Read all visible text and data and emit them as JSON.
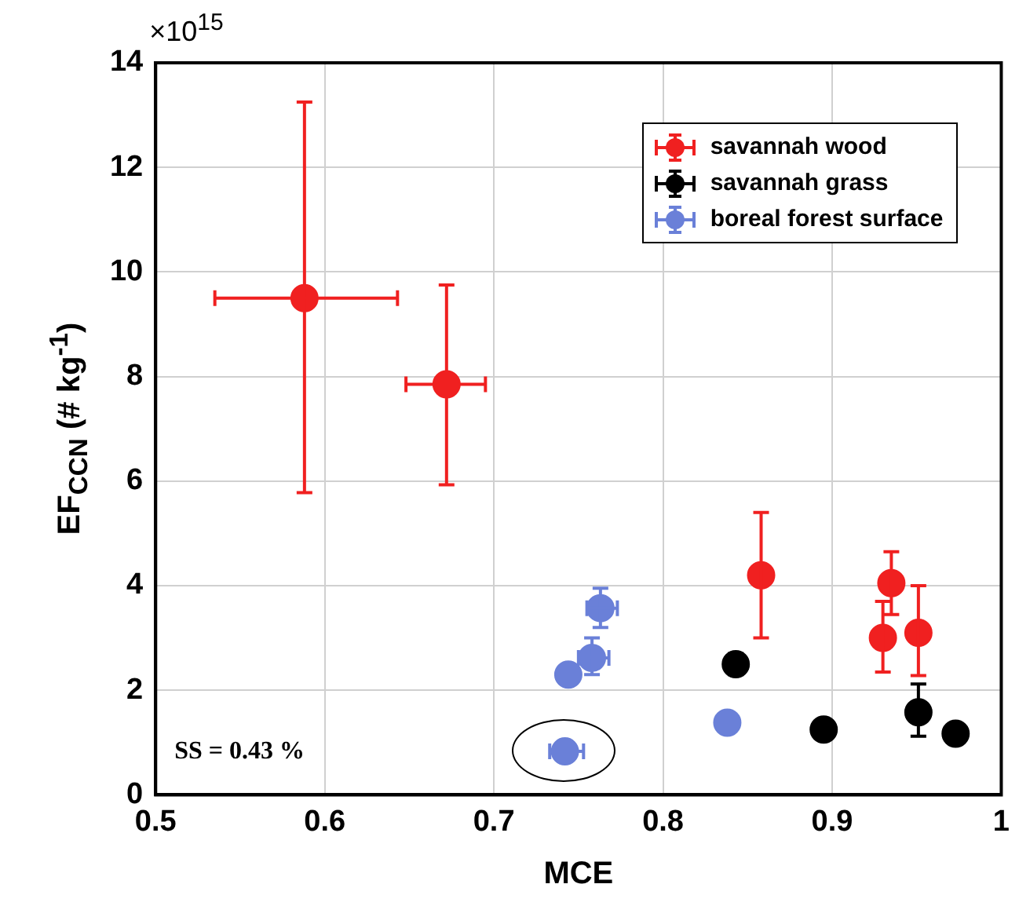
{
  "chart_data": {
    "type": "scatter",
    "xlabel": "MCE",
    "ylabel": "EF$_{CCN}$ (# kg$^{-1}$)",
    "annotations": [
      "×10$^{15}$",
      "SS = 0.43 %"
    ],
    "xlim": [
      0.5,
      1
    ],
    "xticks": [
      0.5,
      0.6,
      0.7,
      0.8,
      0.9,
      1
    ],
    "ylim": [
      0,
      14
    ],
    "yticks": [
      0,
      2,
      4,
      6,
      8,
      10,
      12,
      14
    ],
    "grid": true,
    "legend": "top right",
    "marker": "circle",
    "series": [
      {
        "name": "savannah wood",
        "color": "#f02020",
        "x": [
          0.588,
          0.672,
          0.858,
          0.93,
          0.935,
          0.951
        ],
        "values": [
          9.5,
          7.85,
          4.2,
          3.0,
          4.05,
          3.1
        ],
        "errors": [
          [
            5.78,
            13.25
          ],
          [
            5.93,
            9.75
          ],
          [
            3.0,
            5.4
          ],
          [
            2.35,
            3.7
          ],
          [
            3.45,
            4.65
          ],
          [
            2.28,
            4.0
          ]
        ],
        "xerrors": [
          [
            0.535,
            0.643
          ],
          [
            0.648,
            0.695
          ],
          null,
          null,
          null,
          null
        ]
      },
      {
        "name": "savannah grass",
        "color": "#000000",
        "x": [
          0.843,
          0.895,
          0.951,
          0.973
        ],
        "values": [
          2.5,
          1.25,
          1.58,
          1.17
        ],
        "errors": [
          [
            2.3,
            2.7
          ],
          null,
          [
            1.12,
            2.12
          ],
          null
        ],
        "xerrors": [
          null,
          null,
          null,
          null
        ]
      },
      {
        "name": "boreal forest surface",
        "color": "#6a80d8",
        "x": [
          0.742,
          0.744,
          0.758,
          0.763,
          0.838
        ],
        "values": [
          0.83,
          2.3,
          2.62,
          3.57,
          1.38
        ],
        "errors": [
          null,
          null,
          [
            2.3,
            3.0
          ],
          [
            3.2,
            3.95
          ],
          null
        ],
        "xerrors": [
          [
            0.733,
            0.753
          ],
          null,
          [
            0.75,
            0.768
          ],
          [
            0.755,
            0.773
          ],
          null
        ]
      }
    ]
  }
}
